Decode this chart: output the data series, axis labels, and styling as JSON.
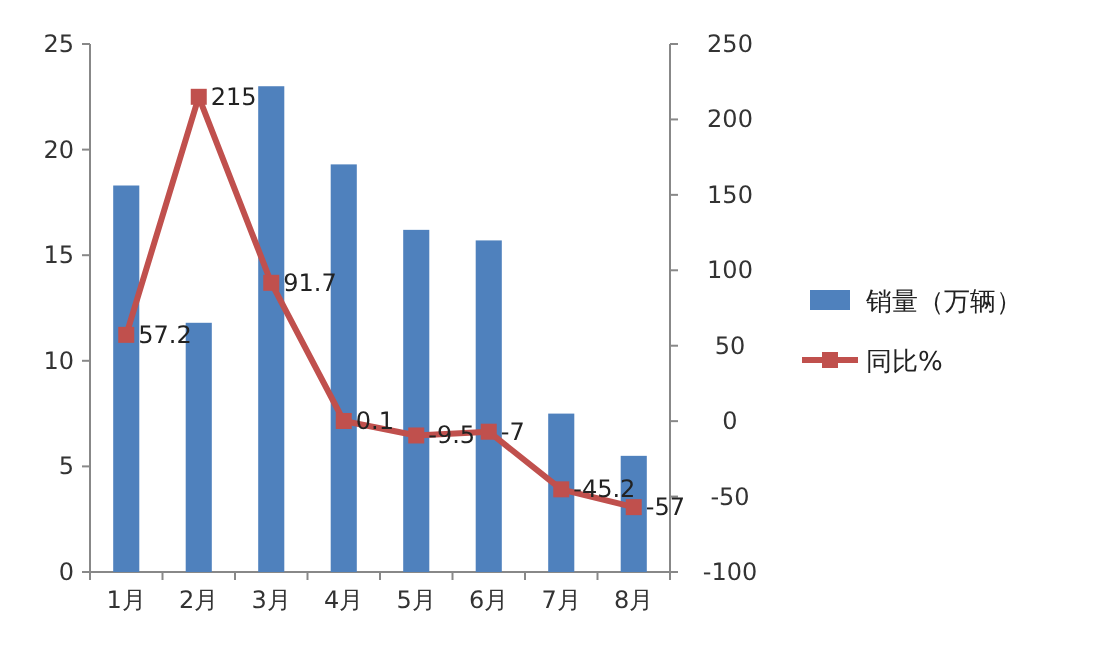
{
  "chart_data": {
    "type": "bar",
    "categories": [
      "1月",
      "2月",
      "3月",
      "4月",
      "5月",
      "6月",
      "7月",
      "8月"
    ],
    "series": [
      {
        "name": "销量（万辆）",
        "color": "#4f81bd",
        "values": [
          18.3,
          11.8,
          23,
          19.3,
          16.2,
          15.7,
          7.5,
          5.5
        ]
      },
      {
        "name": "同比%",
        "type": "line",
        "axis": "y2",
        "color": "#c0504d",
        "values": [
          57.2,
          215,
          91.7,
          0.1,
          -9.5,
          -7,
          -45.2,
          -57
        ],
        "value_labels": [
          "57.2",
          "215",
          "91.7",
          "0.1",
          "-9.5",
          "-7",
          "-45.2",
          "-57"
        ]
      }
    ],
    "ylim": [
      0,
      25
    ],
    "yticks": [
      0,
      5,
      10,
      15,
      20,
      25
    ],
    "y2lim": [
      -100,
      250
    ],
    "y2ticks": [
      -100,
      -50,
      0,
      50,
      100,
      150,
      200,
      250
    ],
    "legend": "right",
    "marker": "square",
    "line_style": "solid"
  }
}
